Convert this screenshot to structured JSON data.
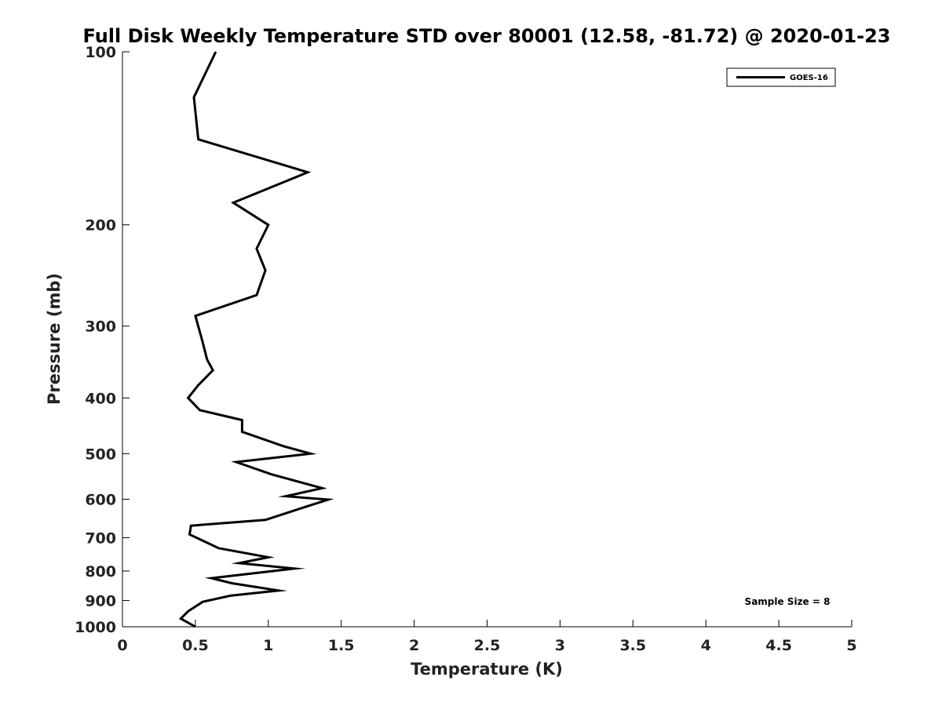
{
  "chart_data": {
    "type": "line",
    "title": "Full Disk Weekly Temperature STD over 80001 (12.58, -81.72) @ 2020-01-23",
    "xlabel": "Temperature (K)",
    "ylabel": "Pressure (mb)",
    "xlim": [
      0,
      5
    ],
    "ylim": [
      100,
      1000
    ],
    "y_scale": "log",
    "y_reversed": true,
    "x_ticks": [
      "0",
      "0.5",
      "1",
      "1.5",
      "2",
      "2.5",
      "3",
      "3.5",
      "4",
      "4.5",
      "5"
    ],
    "y_ticks": [
      "100",
      "200",
      "300",
      "400",
      "500",
      "600",
      "700",
      "800",
      "900",
      "1000"
    ],
    "grid": false,
    "legend_position": "top-right",
    "annotation": "Sample Size = 8",
    "series": [
      {
        "name": "GOES-16",
        "color": "#000000",
        "points": [
          [
            0.64,
            100
          ],
          [
            0.49,
            120
          ],
          [
            0.52,
            142
          ],
          [
            1.27,
            162
          ],
          [
            0.76,
            183
          ],
          [
            1.0,
            200
          ],
          [
            0.92,
            220
          ],
          [
            0.98,
            240
          ],
          [
            0.92,
            265
          ],
          [
            0.5,
            288
          ],
          [
            0.55,
            320
          ],
          [
            0.58,
            343
          ],
          [
            0.62,
            358
          ],
          [
            0.52,
            380
          ],
          [
            0.45,
            400
          ],
          [
            0.53,
            420
          ],
          [
            0.82,
            437
          ],
          [
            0.82,
            458
          ],
          [
            1.1,
            485
          ],
          [
            1.29,
            500
          ],
          [
            0.78,
            517
          ],
          [
            1.02,
            543
          ],
          [
            1.37,
            574
          ],
          [
            1.12,
            593
          ],
          [
            1.41,
            601
          ],
          [
            1.2,
            625
          ],
          [
            0.98,
            652
          ],
          [
            0.47,
            667
          ],
          [
            0.46,
            691
          ],
          [
            0.66,
            730
          ],
          [
            1.0,
            757
          ],
          [
            0.8,
            775
          ],
          [
            1.18,
            792
          ],
          [
            0.85,
            810
          ],
          [
            0.61,
            823
          ],
          [
            0.75,
            840
          ],
          [
            1.07,
            865
          ],
          [
            0.74,
            883
          ],
          [
            0.55,
            905
          ],
          [
            0.45,
            940
          ],
          [
            0.4,
            968
          ],
          [
            0.5,
            1000
          ]
        ]
      }
    ]
  }
}
